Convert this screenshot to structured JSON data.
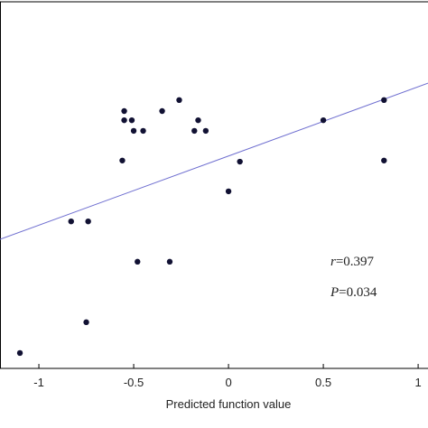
{
  "chart_data": {
    "type": "scatter",
    "xlabel": "Predicted function value",
    "x": [
      -1.1,
      -0.83,
      -0.74,
      -0.75,
      -0.56,
      -0.55,
      -0.55,
      -0.51,
      -0.5,
      -0.45,
      -0.48,
      -0.35,
      -0.31,
      -0.26,
      -0.18,
      -0.16,
      -0.12,
      0.0,
      0.06,
      0.5,
      0.82,
      0.82
    ],
    "values": [
      0.042,
      0.401,
      0.401,
      0.126,
      0.567,
      0.702,
      0.677,
      0.677,
      0.648,
      0.648,
      0.291,
      0.702,
      0.291,
      0.732,
      0.648,
      0.677,
      0.648,
      0.483,
      0.564,
      0.677,
      0.732,
      0.567
    ],
    "color": "#111133",
    "fit_line": {
      "x": [
        -1.205,
        1.052
      ],
      "y": [
        0.352,
        0.778
      ],
      "color": "#6f6fd0"
    },
    "xlim": [
      -1.205,
      1.052
    ],
    "ylim": [
      0,
      1
    ],
    "xticks": [
      -1,
      -0.5,
      0,
      0.5,
      1
    ],
    "annotations": [
      {
        "symbol": "r",
        "text": "=0.397"
      },
      {
        "symbol": "P",
        "text": "=0.034"
      }
    ]
  }
}
